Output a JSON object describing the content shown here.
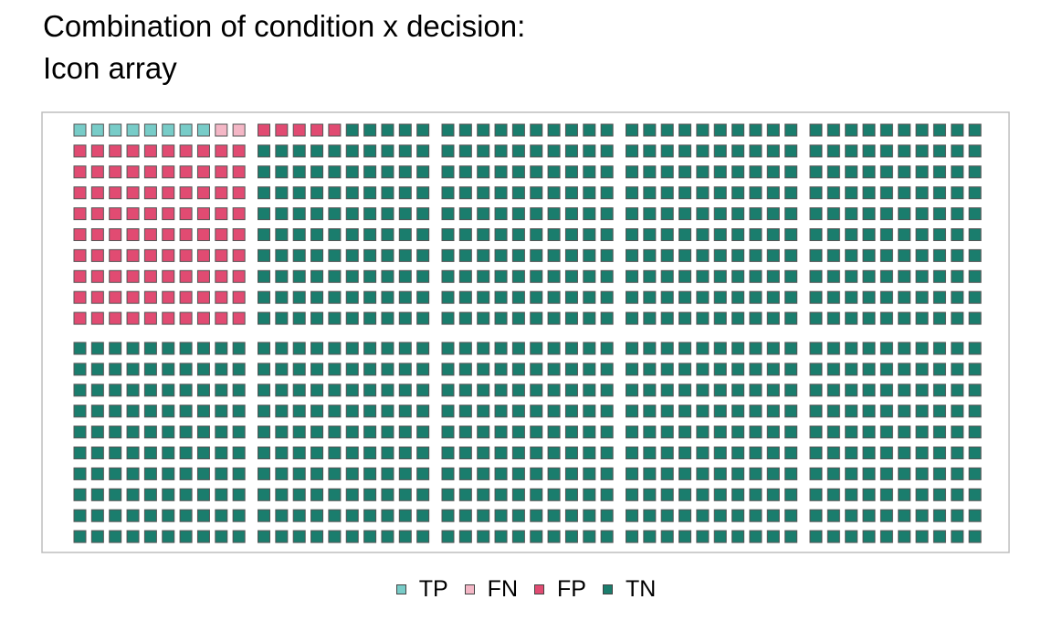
{
  "chart_data": {
    "type": "icon_array",
    "title_line1": "Combination of condition x decision:",
    "title_line2": "Icon array",
    "total": 1000,
    "grid_rows": 20,
    "grid_cols": 50,
    "categories": [
      "TP",
      "FN",
      "FP",
      "TN"
    ],
    "values": [
      8,
      2,
      95,
      895
    ],
    "colors": {
      "TP": "#78ccc8",
      "FN": "#f4b7c6",
      "FP": "#e14b72",
      "TN": "#1a7d6d"
    },
    "legend_position": "bottom"
  },
  "legend": {
    "items": [
      {
        "label": "TP",
        "color": "#78ccc8"
      },
      {
        "label": "FN",
        "color": "#f4b7c6"
      },
      {
        "label": "FP",
        "color": "#e14b72"
      },
      {
        "label": "TN",
        "color": "#1a7d6d"
      }
    ]
  }
}
